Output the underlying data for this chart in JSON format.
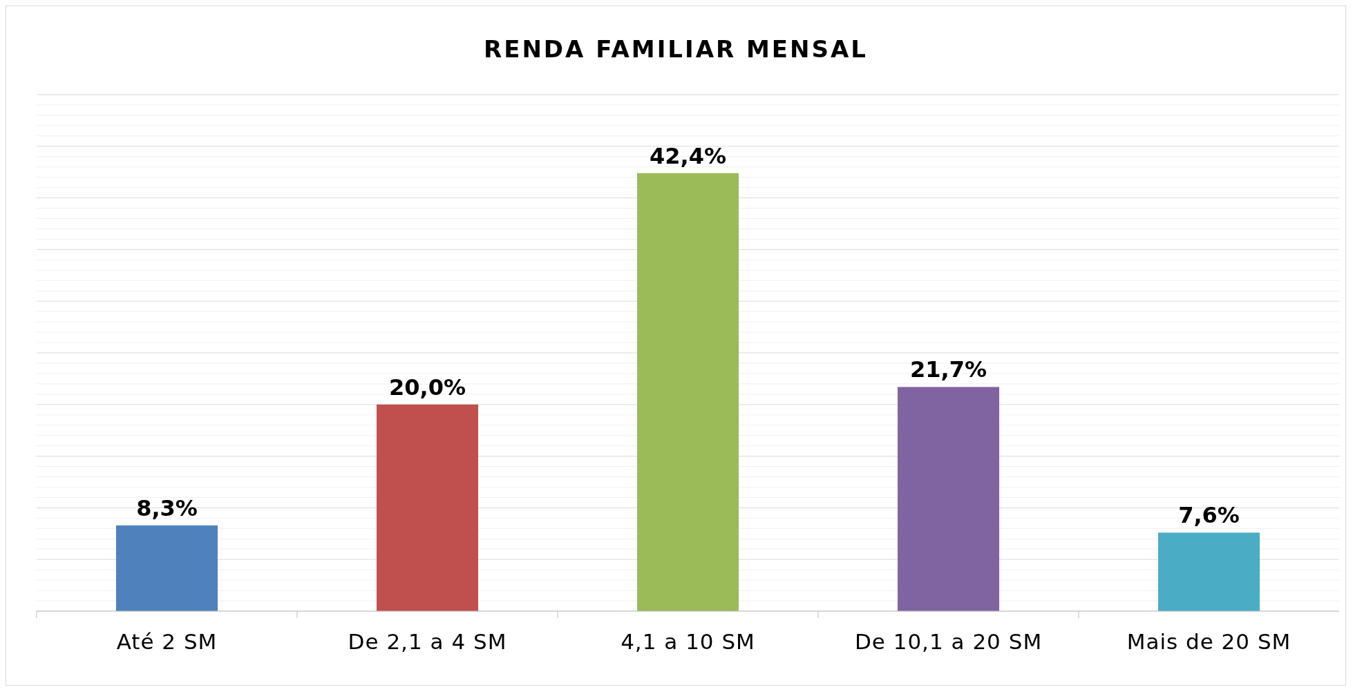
{
  "chart_data": {
    "type": "bar",
    "title": "RENDA FAMILIAR MENSAL",
    "categories": [
      "Até 2 SM",
      "De 2,1 a 4 SM",
      "4,1 a 10 SM",
      "De 10,1 a 20 SM",
      "Mais de 20 SM"
    ],
    "values": [
      8.3,
      20.0,
      42.4,
      21.7,
      7.6
    ],
    "colors": [
      "#4f81bd",
      "#c0504d",
      "#9bbb59",
      "#8064a2",
      "#4bacc6"
    ],
    "value_labels": [
      "8,3%",
      "20,0%",
      "42,4%",
      "21,7%",
      "7,6%"
    ],
    "ylim": [
      0,
      50
    ],
    "yticks": [
      {
        "value": 0,
        "label": null
      },
      {
        "value": 5,
        "label": null
      },
      {
        "value": 10,
        "label": null
      },
      {
        "value": 15,
        "label": null
      },
      {
        "value": 20,
        "label": null
      },
      {
        "value": 25,
        "label": null
      },
      {
        "value": 30,
        "label": null
      },
      {
        "value": 35,
        "label": null
      },
      {
        "value": 40,
        "label": null
      },
      {
        "value": 45,
        "label": null
      },
      {
        "value": 50,
        "label": null
      }
    ],
    "tick_labels": "x",
    "grid": "y"
  }
}
